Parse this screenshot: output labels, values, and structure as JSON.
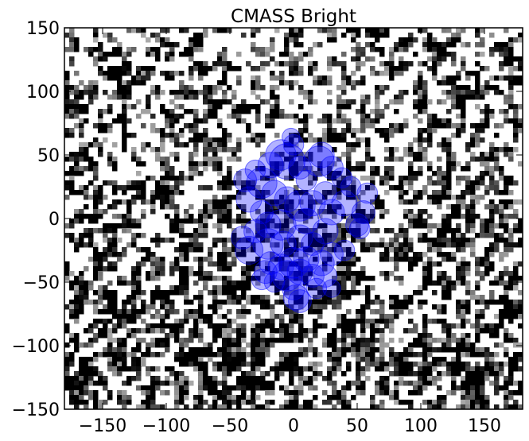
{
  "chart_data": {
    "type": "scatter",
    "title": "CMASS Bright",
    "xlabel": "",
    "ylabel": "",
    "xlim": [
      -180,
      180
    ],
    "ylim": [
      -150,
      150
    ],
    "x_ticks": [
      -150,
      -100,
      -50,
      0,
      50,
      100,
      150
    ],
    "y_ticks": [
      -150,
      -100,
      -50,
      0,
      50,
      100,
      150
    ],
    "x_tick_labels": [
      "−150",
      "−100",
      "−50",
      "0",
      "50",
      "100",
      "150"
    ],
    "y_tick_labels": [
      "−150",
      "−100",
      "−50",
      "0",
      "50",
      "100",
      "150"
    ],
    "grid": false,
    "background": "grayscale noise map",
    "marker_color": "#0000ff",
    "marker_opacity": 0.3,
    "series": [
      {
        "name": "",
        "points": [
          {
            "x": -38,
            "y": 30,
            "r": 9
          },
          {
            "x": -30,
            "y": 38,
            "r": 8
          },
          {
            "x": -25,
            "y": 28,
            "r": 12
          },
          {
            "x": -18,
            "y": 42,
            "r": 10
          },
          {
            "x": -10,
            "y": 50,
            "r": 12
          },
          {
            "x": -5,
            "y": 45,
            "r": 14
          },
          {
            "x": 0,
            "y": 58,
            "r": 8
          },
          {
            "x": -2,
            "y": 64,
            "r": 7
          },
          {
            "x": 5,
            "y": 40,
            "r": 9
          },
          {
            "x": 10,
            "y": 30,
            "r": 8
          },
          {
            "x": 20,
            "y": 45,
            "r": 12
          },
          {
            "x": 22,
            "y": 50,
            "r": 10
          },
          {
            "x": 30,
            "y": 40,
            "r": 9
          },
          {
            "x": 38,
            "y": 32,
            "r": 8
          },
          {
            "x": 45,
            "y": 25,
            "r": 8
          },
          {
            "x": 58,
            "y": 20,
            "r": 8
          },
          {
            "x": 25,
            "y": 20,
            "r": 9
          },
          {
            "x": 15,
            "y": 12,
            "r": 10
          },
          {
            "x": 30,
            "y": 5,
            "r": 10
          },
          {
            "x": 40,
            "y": 12,
            "r": 10
          },
          {
            "x": 55,
            "y": 5,
            "r": 9
          },
          {
            "x": 50,
            "y": -5,
            "r": 9
          },
          {
            "x": 52,
            "y": -8,
            "r": 8
          },
          {
            "x": -35,
            "y": 15,
            "r": 10
          },
          {
            "x": -25,
            "y": 5,
            "r": 9
          },
          {
            "x": -15,
            "y": 20,
            "r": 10
          },
          {
            "x": -5,
            "y": 15,
            "r": 10
          },
          {
            "x": 5,
            "y": 10,
            "r": 12
          },
          {
            "x": 10,
            "y": -2,
            "r": 10
          },
          {
            "x": -20,
            "y": -5,
            "r": 10
          },
          {
            "x": -10,
            "y": -5,
            "r": 12
          },
          {
            "x": -30,
            "y": -10,
            "r": 9
          },
          {
            "x": -40,
            "y": -15,
            "r": 9
          },
          {
            "x": -35,
            "y": -25,
            "r": 11
          },
          {
            "x": -20,
            "y": -20,
            "r": 12
          },
          {
            "x": -8,
            "y": -20,
            "r": 10
          },
          {
            "x": 5,
            "y": -15,
            "r": 10
          },
          {
            "x": 15,
            "y": -20,
            "r": 9
          },
          {
            "x": 25,
            "y": -10,
            "r": 10
          },
          {
            "x": 30,
            "y": -28,
            "r": 9
          },
          {
            "x": 40,
            "y": -25,
            "r": 8
          },
          {
            "x": 22,
            "y": -35,
            "r": 10
          },
          {
            "x": 10,
            "y": -32,
            "r": 10
          },
          {
            "x": 0,
            "y": -35,
            "r": 12
          },
          {
            "x": -10,
            "y": -38,
            "r": 10
          },
          {
            "x": -18,
            "y": -35,
            "r": 9
          },
          {
            "x": -22,
            "y": -42,
            "r": 9
          },
          {
            "x": -15,
            "y": -50,
            "r": 8
          },
          {
            "x": -5,
            "y": -45,
            "r": 12
          },
          {
            "x": 5,
            "y": -42,
            "r": 10
          },
          {
            "x": 15,
            "y": -45,
            "r": 9
          },
          {
            "x": 25,
            "y": -45,
            "r": 9
          },
          {
            "x": 30,
            "y": -55,
            "r": 7
          },
          {
            "x": 0,
            "y": -55,
            "r": 9
          },
          {
            "x": 2,
            "y": -62,
            "r": 10
          },
          {
            "x": 5,
            "y": -65,
            "r": 9
          },
          {
            "x": 18,
            "y": -55,
            "r": 8
          },
          {
            "x": -25,
            "y": -48,
            "r": 8
          }
        ]
      }
    ]
  }
}
